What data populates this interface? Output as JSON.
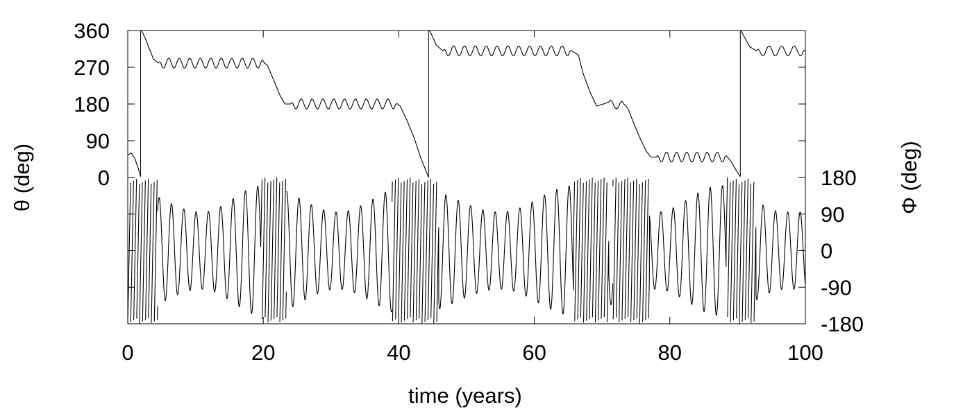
{
  "chart_data": {
    "type": "line",
    "xlabel": "time (years)",
    "xlim": [
      0,
      100
    ],
    "x_ticks": [
      0,
      20,
      40,
      60,
      80,
      100
    ],
    "x_tick_labels": [
      "0",
      "20",
      "40",
      "60",
      "80",
      "100"
    ],
    "grid": false,
    "color": "#000000",
    "panels": [
      {
        "position": "top",
        "ylabel": "θ (deg)",
        "y_axis_side": "left",
        "ylim": [
          0,
          360
        ],
        "y_ticks": [
          0,
          90,
          180,
          270,
          360
        ],
        "y_tick_labels": [
          "0",
          "90",
          "180",
          "270",
          "360"
        ],
        "series": [
          {
            "x": [
              0,
              0.5,
              1.0,
              1.5,
              1.9,
              2.0,
              2.2,
              2.6,
              3.2,
              3.8,
              4.5,
              20.2,
              20.6,
              21.5,
              22.5,
              23.2,
              24.0,
              39.8,
              40.2,
              41.2,
              42.2,
              43.2,
              44.4,
              44.5,
              44.7,
              45.5,
              46.5,
              65.5,
              66.5,
              67.2,
              68.2,
              69.2,
              70.2,
              71.0,
              73.2,
              73.8,
              74.5,
              75.5,
              76.5,
              77.2,
              78.0,
              88.5,
              89.0,
              89.7,
              90.4,
              90.5,
              90.8,
              91.8,
              92.8,
              100
            ],
            "y": [
              55,
              60,
              48,
              25,
              2,
              360,
              355,
              340,
              315,
              290,
              280,
              280,
              275,
              240,
              200,
              180,
              180,
              180,
              175,
              140,
              100,
              50,
              0,
              360,
              355,
              325,
              310,
              310,
              300,
              255,
              210,
              175,
              180,
              185,
              180,
              170,
              140,
              100,
              65,
              50,
              50,
              50,
              40,
              20,
              2,
              360,
              350,
              320,
              310,
              310
            ],
            "ripple": [
              {
                "x_range": [
                  4.5,
                  20.2
                ],
                "amplitude": 12,
                "period": 1.55
              },
              {
                "x_range": [
                  24.0,
                  39.8
                ],
                "amplitude": 12,
                "period": 1.6
              },
              {
                "x_range": [
                  46.5,
                  65.5
                ],
                "amplitude": 12,
                "period": 1.6
              },
              {
                "x_range": [
                  71.0,
                  73.2
                ],
                "amplitude": 14,
                "period": 2.2
              },
              {
                "x_range": [
                  78.0,
                  88.5
                ],
                "amplitude": 12,
                "period": 1.5
              },
              {
                "x_range": [
                  92.8,
                  100
                ],
                "amplitude": 12,
                "period": 1.85
              }
            ]
          }
        ]
      },
      {
        "position": "bottom",
        "ylabel": "Φ (deg)",
        "y_axis_side": "right",
        "ylim": [
          -180,
          180
        ],
        "y_ticks": [
          -180,
          -90,
          0,
          90,
          180
        ],
        "y_tick_labels": [
          "-180",
          "-90",
          "0",
          "90",
          "180"
        ],
        "series": [
          {
            "oscillation": {
              "base_frequency": 0.55,
              "fast_frequency": 2.3,
              "fast_band_width": 2.2,
              "envelope_peak": 160,
              "envelope_trough": 95,
              "envelope_peak_x": [
                -1,
                20,
                41.5,
                66,
                87.5
              ],
              "envelope_trough_x": [
                11,
                31,
                55,
                78,
                97
              ],
              "wrap_events_x": [
                0,
                1.5,
                2.4,
                3.4,
                20.6,
                21.1,
                21.8,
                22.4,
                40.0,
                40.6,
                41.2,
                41.8,
                42.4,
                43.0,
                43.6,
                44.2,
                44.9,
                66.8,
                67.4,
                68.0,
                68.6,
                69.2,
                70.0,
                72.6,
                73.1,
                73.7,
                74.3,
                74.9,
                76.0,
                89.3,
                89.9,
                90.5,
                91.1,
                91.7
              ]
            }
          }
        ]
      }
    ]
  }
}
